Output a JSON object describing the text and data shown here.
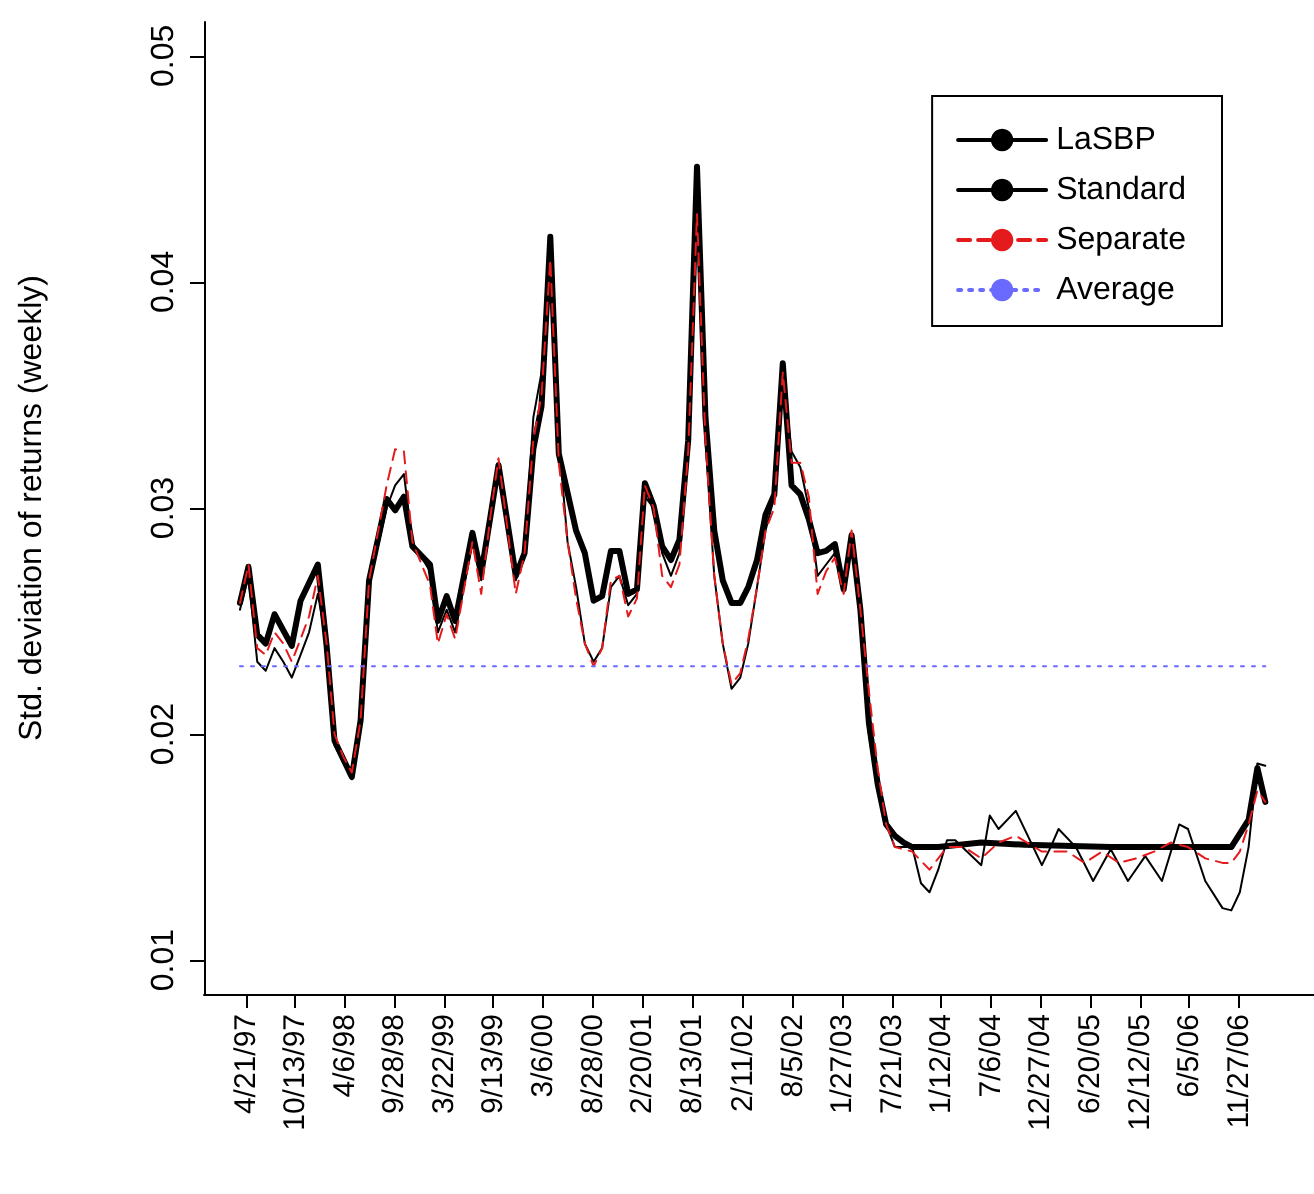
{
  "chart_data": {
    "type": "line",
    "ylabel": "Std. deviation of returns (weekly)",
    "legend": "top right",
    "grid": false,
    "marker": "none",
    "xlim": [
      "1996-11-25",
      "2007-08-20"
    ],
    "ylim": [
      0.0085,
      0.0515
    ],
    "yticks": [
      0.01,
      0.02,
      0.03,
      0.04,
      0.05
    ],
    "xticks": [
      {
        "value": "1997-04-21",
        "label": "4/21/97"
      },
      {
        "value": "1997-10-13",
        "label": "10/13/97"
      },
      {
        "value": "1998-04-06",
        "label": "4/6/98"
      },
      {
        "value": "1998-09-28",
        "label": "9/28/98"
      },
      {
        "value": "1999-03-22",
        "label": "3/22/99"
      },
      {
        "value": "1999-09-13",
        "label": "9/13/99"
      },
      {
        "value": "2000-03-06",
        "label": "3/6/00"
      },
      {
        "value": "2000-08-28",
        "label": "8/28/00"
      },
      {
        "value": "2001-02-20",
        "label": "2/20/01"
      },
      {
        "value": "2001-08-13",
        "label": "8/13/01"
      },
      {
        "value": "2002-02-11",
        "label": "2/11/02"
      },
      {
        "value": "2002-08-05",
        "label": "8/5/02"
      },
      {
        "value": "2003-01-27",
        "label": "1/27/03"
      },
      {
        "value": "2003-07-21",
        "label": "7/21/03"
      },
      {
        "value": "2004-01-12",
        "label": "1/12/04"
      },
      {
        "value": "2004-07-06",
        "label": "7/6/04"
      },
      {
        "value": "2004-12-27",
        "label": "12/27/04"
      },
      {
        "value": "2005-06-20",
        "label": "6/20/05"
      },
      {
        "value": "2005-12-12",
        "label": "12/12/05"
      },
      {
        "value": "2006-06-05",
        "label": "6/5/06"
      },
      {
        "value": "2006-11-27",
        "label": "11/27/06"
      }
    ],
    "series": [
      {
        "name": "LaSBP",
        "color": "#000000",
        "line_style": "solid",
        "x": [
          "1997-04",
          "1997-05",
          "1997-06",
          "1997-07",
          "1997-08",
          "1997-10",
          "1997-11",
          "1998-01",
          "1998-02",
          "1998-03",
          "1998-05",
          "1998-06",
          "1998-07",
          "1998-09",
          "1998-10",
          "1998-11",
          "1998-12",
          "1999-02",
          "1999-03",
          "1999-04",
          "1999-05",
          "1999-07",
          "1999-08",
          "1999-09",
          "1999-10",
          "1999-12",
          "2000-01",
          "2000-02",
          "2000-03",
          "2000-04",
          "2000-05",
          "2000-07",
          "2000-08",
          "2000-09",
          "2000-10",
          "2000-11",
          "2000-12",
          "2001-01",
          "2001-02",
          "2001-03",
          "2001-04",
          "2001-05",
          "2001-06",
          "2001-07",
          "2001-08",
          "2001-09",
          "2001-10",
          "2001-11",
          "2001-12",
          "2002-01",
          "2002-02",
          "2002-03",
          "2002-04",
          "2002-05",
          "2002-06",
          "2002-07",
          "2002-08",
          "2002-09",
          "2002-10",
          "2002-11",
          "2002-12",
          "2003-01",
          "2003-02",
          "2003-03",
          "2003-04",
          "2003-05",
          "2003-06",
          "2003-07",
          "2003-08",
          "2003-09",
          "2003-10",
          "2004-01",
          "2004-06",
          "2004-11",
          "2005-09",
          "2006-07",
          "2006-11",
          "2007-01",
          "2007-02",
          "2007-03"
        ],
        "values": [
          0.0258,
          0.0274,
          0.0244,
          0.024,
          0.0253,
          0.0239,
          0.0259,
          0.0275,
          0.0239,
          0.0197,
          0.0181,
          0.0206,
          0.0268,
          0.0304,
          0.0299,
          0.0305,
          0.0283,
          0.0275,
          0.025,
          0.0261,
          0.025,
          0.0289,
          0.0271,
          0.0295,
          0.0319,
          0.027,
          0.028,
          0.0326,
          0.0345,
          0.042,
          0.0324,
          0.029,
          0.028,
          0.0259,
          0.0261,
          0.0281,
          0.0281,
          0.0262,
          0.0264,
          0.0311,
          0.0301,
          0.0283,
          0.0277,
          0.0286,
          0.033,
          0.0451,
          0.034,
          0.029,
          0.0268,
          0.0258,
          0.0258,
          0.0265,
          0.0277,
          0.0297,
          0.0306,
          0.0364,
          0.031,
          0.0306,
          0.0295,
          0.028,
          0.0281,
          0.0284,
          0.0264,
          0.0288,
          0.0255,
          0.0205,
          0.0178,
          0.016,
          0.0155,
          0.0152,
          0.015,
          0.015,
          0.0152,
          0.0151,
          0.015,
          0.015,
          0.015,
          0.0162,
          0.0185,
          0.017
        ]
      },
      {
        "name": "Standard",
        "color": "#000000",
        "line_style": "solid",
        "x": [
          "1997-04",
          "1997-05",
          "1997-06",
          "1997-07",
          "1997-08",
          "1997-09",
          "1997-10",
          "1997-11",
          "1997-12",
          "1998-01",
          "1998-02",
          "1998-03",
          "1998-05",
          "1998-06",
          "1998-07",
          "1998-09",
          "1998-10",
          "1998-11",
          "1998-12",
          "1999-02",
          "1999-03",
          "1999-04",
          "1999-05",
          "1999-07",
          "1999-08",
          "1999-09",
          "1999-10",
          "1999-12",
          "2000-01",
          "2000-02",
          "2000-03",
          "2000-04",
          "2000-05",
          "2000-06",
          "2000-07",
          "2000-08",
          "2000-09",
          "2000-10",
          "2000-11",
          "2000-12",
          "2001-01",
          "2001-02",
          "2001-03",
          "2001-04",
          "2001-05",
          "2001-06",
          "2001-07",
          "2001-08",
          "2001-09",
          "2001-10",
          "2001-11",
          "2001-12",
          "2002-01",
          "2002-02",
          "2002-03",
          "2002-04",
          "2002-05",
          "2002-06",
          "2002-07",
          "2002-08",
          "2002-09",
          "2002-10",
          "2002-11",
          "2002-12",
          "2003-01",
          "2003-02",
          "2003-03",
          "2003-04",
          "2003-05",
          "2003-06",
          "2003-07",
          "2003-08",
          "2003-10",
          "2003-11",
          "2003-12",
          "2004-01",
          "2004-02",
          "2004-03",
          "2004-06",
          "2004-07",
          "2004-08",
          "2004-10",
          "2005-01",
          "2005-02",
          "2005-03",
          "2005-05",
          "2005-07",
          "2005-09",
          "2005-11",
          "2006-01",
          "2006-03",
          "2006-05",
          "2006-06",
          "2006-08",
          "2006-10",
          "2006-11",
          "2006-12",
          "2007-01",
          "2007-02",
          "2007-03"
        ],
        "values": [
          0.0255,
          0.027,
          0.0232,
          0.0228,
          0.0238,
          0.0232,
          0.0225,
          0.0235,
          0.0245,
          0.0262,
          0.024,
          0.0195,
          0.018,
          0.0204,
          0.0266,
          0.03,
          0.031,
          0.0315,
          0.0285,
          0.0272,
          0.0245,
          0.0255,
          0.0245,
          0.0285,
          0.0268,
          0.0292,
          0.0318,
          0.0268,
          0.028,
          0.034,
          0.036,
          0.04,
          0.033,
          0.0285,
          0.0265,
          0.024,
          0.0232,
          0.0238,
          0.0265,
          0.027,
          0.0257,
          0.0262,
          0.0305,
          0.03,
          0.028,
          0.027,
          0.028,
          0.0325,
          0.045,
          0.033,
          0.027,
          0.024,
          0.022,
          0.0225,
          0.024,
          0.0265,
          0.029,
          0.0305,
          0.036,
          0.0325,
          0.0318,
          0.03,
          0.027,
          0.0275,
          0.028,
          0.0264,
          0.0285,
          0.025,
          0.02,
          0.0175,
          0.016,
          0.015,
          0.015,
          0.0134,
          0.013,
          0.014,
          0.0153,
          0.0153,
          0.0142,
          0.0164,
          0.0158,
          0.0166,
          0.0142,
          0.015,
          0.0158,
          0.015,
          0.0135,
          0.0149,
          0.0135,
          0.0146,
          0.0135,
          0.016,
          0.0158,
          0.0135,
          0.0123,
          0.0122,
          0.013,
          0.015,
          0.0187,
          0.0186
        ]
      },
      {
        "name": "Separate",
        "color": "#e41a1c",
        "line_style": "dashed",
        "x": [
          "1997-04",
          "1997-05",
          "1997-06",
          "1997-07",
          "1997-08",
          "1997-09",
          "1997-10",
          "1997-11",
          "1997-12",
          "1998-01",
          "1998-02",
          "1998-03",
          "1998-04",
          "1998-05",
          "1998-06",
          "1998-07",
          "1998-09",
          "1998-10",
          "1998-11",
          "1998-12",
          "1999-02",
          "1999-03",
          "1999-04",
          "1999-05",
          "1999-07",
          "1999-08",
          "1999-09",
          "1999-10",
          "1999-12",
          "2000-01",
          "2000-02",
          "2000-03",
          "2000-04",
          "2000-05",
          "2000-06",
          "2000-07",
          "2000-08",
          "2000-09",
          "2000-10",
          "2000-11",
          "2000-12",
          "2001-01",
          "2001-02",
          "2001-03",
          "2001-04",
          "2001-05",
          "2001-06",
          "2001-07",
          "2001-08",
          "2001-09",
          "2001-10",
          "2001-11",
          "2001-12",
          "2002-01",
          "2002-02",
          "2002-03",
          "2002-04",
          "2002-05",
          "2002-06",
          "2002-07",
          "2002-08",
          "2002-09",
          "2002-10",
          "2002-11",
          "2002-12",
          "2003-01",
          "2003-02",
          "2003-03",
          "2003-04",
          "2003-05",
          "2003-06",
          "2003-07",
          "2003-08",
          "2003-10",
          "2003-12",
          "2004-02",
          "2004-04",
          "2004-06",
          "2004-08",
          "2004-10",
          "2005-01",
          "2005-04",
          "2005-06",
          "2005-08",
          "2005-10",
          "2005-12",
          "2006-02",
          "2006-04",
          "2006-06",
          "2006-08",
          "2006-10",
          "2006-11",
          "2006-12",
          "2007-01",
          "2007-02",
          "2007-03"
        ],
        "values": [
          0.0258,
          0.0275,
          0.0238,
          0.0235,
          0.0245,
          0.024,
          0.0232,
          0.0242,
          0.0252,
          0.027,
          0.024,
          0.02,
          0.019,
          0.0183,
          0.0206,
          0.0268,
          0.031,
          0.0326,
          0.0325,
          0.0285,
          0.0266,
          0.024,
          0.0253,
          0.0242,
          0.0285,
          0.0262,
          0.0295,
          0.0322,
          0.0262,
          0.028,
          0.033,
          0.035,
          0.041,
          0.032,
          0.0285,
          0.026,
          0.024,
          0.023,
          0.0238,
          0.0268,
          0.027,
          0.0252,
          0.026,
          0.031,
          0.03,
          0.027,
          0.0265,
          0.0275,
          0.0325,
          0.043,
          0.033,
          0.027,
          0.024,
          0.0222,
          0.0227,
          0.0242,
          0.0265,
          0.029,
          0.03,
          0.036,
          0.032,
          0.032,
          0.0305,
          0.0262,
          0.0272,
          0.0278,
          0.0262,
          0.029,
          0.0255,
          0.0219,
          0.0185,
          0.016,
          0.015,
          0.0148,
          0.014,
          0.015,
          0.015,
          0.0145,
          0.0152,
          0.0155,
          0.0148,
          0.0148,
          0.0143,
          0.0148,
          0.0143,
          0.0145,
          0.0148,
          0.0152,
          0.015,
          0.0145,
          0.0143,
          0.0143,
          0.0148,
          0.016,
          0.0175,
          0.017
        ]
      },
      {
        "name": "Average",
        "color": "#6a6aff",
        "line_style": "dotted",
        "x": [
          "1997-04",
          "2007-03"
        ],
        "values": [
          0.023,
          0.023
        ]
      }
    ]
  }
}
